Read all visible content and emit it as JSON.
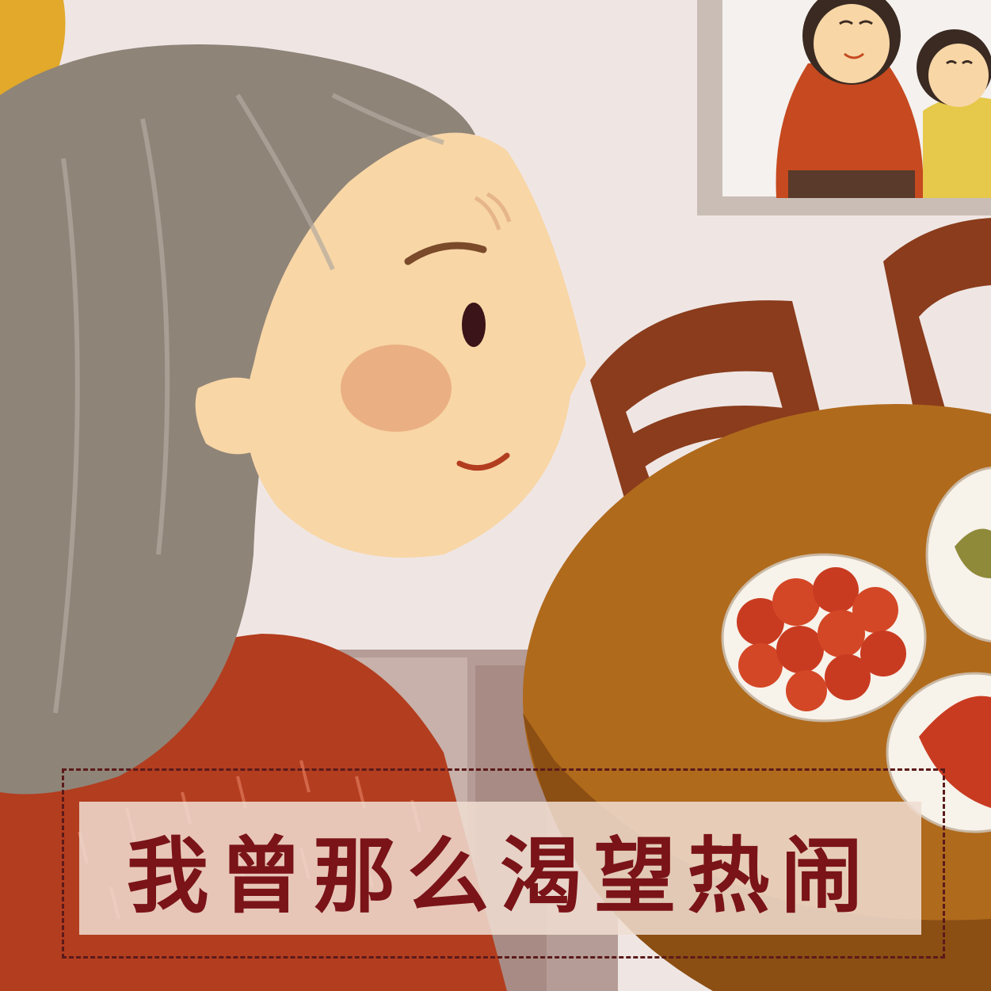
{
  "caption": {
    "text": "我曾那么渴望热闹"
  },
  "colors": {
    "wall": "#efe6e4",
    "hair": "#8f8478",
    "skin": "#f8d6a6",
    "sweater": "#b33d1f",
    "table": "#b06a1c",
    "chair": "#8a3c1c",
    "caption_text": "#7a1418"
  }
}
